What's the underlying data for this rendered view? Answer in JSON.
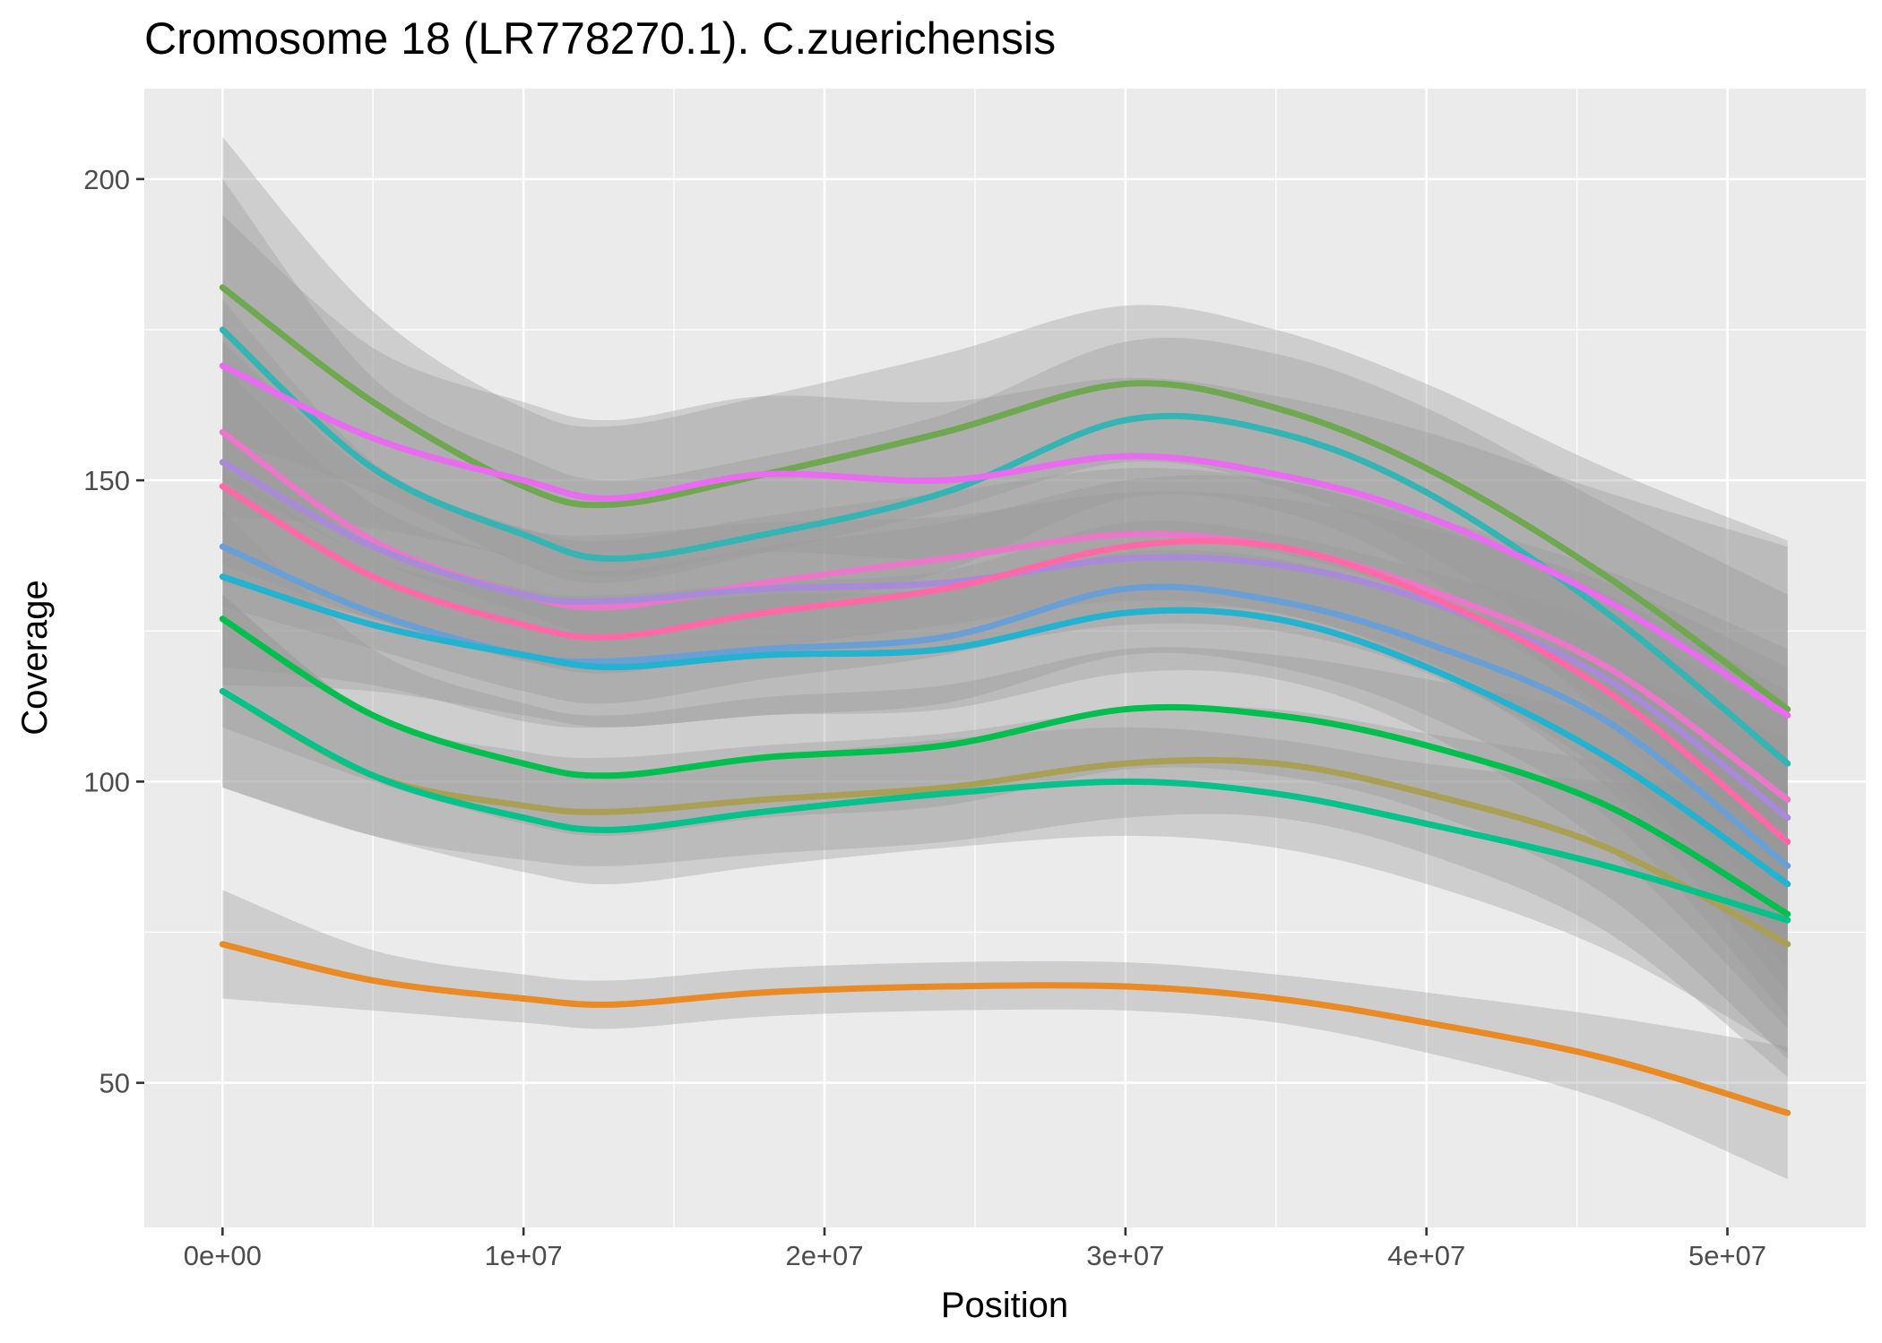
{
  "chart_data": {
    "type": "line",
    "title": "Cromosome 18 (LR778270.1). C.zuerichensis",
    "xlabel": "Position",
    "ylabel": "Coverage",
    "xlim": [
      -2600000,
      54600000
    ],
    "ylim": [
      26,
      215
    ],
    "x_ticks": [
      0,
      10000000,
      20000000,
      30000000,
      40000000,
      50000000
    ],
    "x_tick_labels": [
      "0e+00",
      "1e+07",
      "2e+07",
      "3e+07",
      "4e+07",
      "5e+07"
    ],
    "y_ticks": [
      50,
      100,
      150,
      200
    ],
    "y_tick_labels": [
      "50",
      "100",
      "150",
      "200"
    ],
    "grid": true,
    "legend": "none",
    "x": [
      0,
      5000000,
      10000000,
      13000000,
      18000000,
      24000000,
      30000000,
      35000000,
      40000000,
      46000000,
      52000000
    ],
    "series": [
      {
        "color": "#6fa850",
        "values": [
          182,
          163,
          149,
          146,
          151,
          158,
          166,
          162,
          152,
          134,
          112
        ],
        "band": [
          25,
          15,
          13,
          13,
          13,
          13,
          13,
          13,
          14,
          18,
          28
        ]
      },
      {
        "color": "#36b4b4",
        "values": [
          175,
          152,
          141,
          137,
          141,
          148,
          160,
          158,
          148,
          128,
          103
        ],
        "band": [
          25,
          15,
          13,
          13,
          13,
          13,
          13,
          13,
          14,
          18,
          28
        ]
      },
      {
        "color": "#e86bf0",
        "values": [
          169,
          157,
          150,
          147,
          151,
          150,
          154,
          151,
          144,
          130,
          111
        ],
        "band": [
          25,
          15,
          13,
          13,
          13,
          13,
          13,
          13,
          14,
          18,
          28
        ]
      },
      {
        "color": "#e979c8",
        "values": [
          158,
          140,
          131,
          129,
          133,
          137,
          141,
          139,
          132,
          119,
          97
        ],
        "band": [
          22,
          13,
          11,
          11,
          11,
          11,
          11,
          11,
          12,
          16,
          25
        ]
      },
      {
        "color": "#a98ad8",
        "values": [
          153,
          139,
          131,
          130,
          132,
          133,
          137,
          136,
          130,
          117,
          94
        ],
        "band": [
          20,
          12,
          11,
          11,
          11,
          11,
          11,
          11,
          12,
          16,
          25
        ]
      },
      {
        "color": "#ff6aa6",
        "values": [
          149,
          134,
          126,
          124,
          128,
          132,
          139,
          139,
          131,
          115,
          90
        ],
        "band": [
          20,
          12,
          11,
          11,
          11,
          11,
          11,
          11,
          12,
          16,
          25
        ]
      },
      {
        "color": "#6a9fd6",
        "values": [
          139,
          128,
          121,
          120,
          122,
          124,
          132,
          130,
          123,
          110,
          86
        ],
        "band": [
          20,
          12,
          11,
          11,
          11,
          11,
          11,
          11,
          12,
          16,
          25
        ]
      },
      {
        "color": "#23b2cf",
        "values": [
          134,
          126,
          121,
          119,
          121,
          122,
          128,
          127,
          119,
          104,
          83
        ],
        "band": [
          18,
          11,
          10,
          10,
          10,
          10,
          10,
          10,
          11,
          15,
          24
        ]
      },
      {
        "color": "#00bf4e",
        "values": [
          127,
          111,
          103,
          101,
          104,
          106,
          112,
          111,
          106,
          96,
          78
        ],
        "band": [
          18,
          11,
          10,
          10,
          10,
          10,
          10,
          10,
          11,
          15,
          24
        ]
      },
      {
        "color": "#a9a056",
        "values": [
          115,
          101,
          96,
          95,
          97,
          99,
          103,
          103,
          98,
          89,
          73
        ],
        "band": [
          16,
          10,
          9,
          9,
          9,
          9,
          9,
          9,
          10,
          14,
          22
        ]
      },
      {
        "color": "#05c18a",
        "values": [
          115,
          101,
          94,
          92,
          95,
          98,
          100,
          98,
          93,
          86,
          77
        ],
        "band": [
          16,
          10,
          9,
          9,
          9,
          9,
          9,
          9,
          10,
          14,
          22
        ]
      },
      {
        "color": "#e98a25",
        "values": [
          73,
          67,
          64,
          63,
          65,
          66,
          66,
          64,
          60,
          54,
          45
        ],
        "band": [
          9,
          5,
          4,
          4,
          4,
          4,
          4,
          4,
          5,
          7,
          11
        ]
      }
    ]
  }
}
